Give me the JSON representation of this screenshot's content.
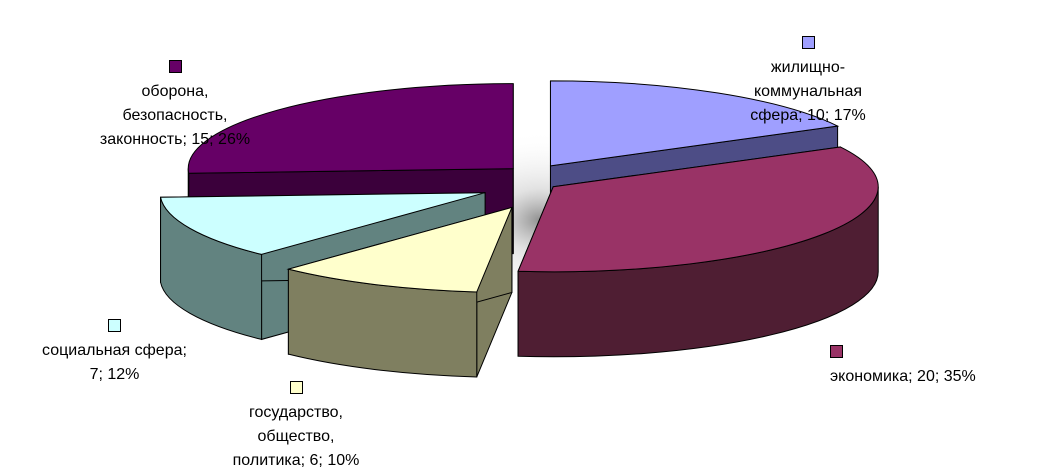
{
  "chart_data": {
    "type": "pie",
    "variant": "3d-exploded",
    "series": [
      {
        "name": "жилищно-коммунальная сфера",
        "value": 10,
        "percent": 17,
        "color": "#9F9FFF",
        "side_color": "#4D4D86"
      },
      {
        "name": "экономика",
        "value": 20,
        "percent": 35,
        "color": "#993366",
        "side_color": "#4F1E33"
      },
      {
        "name": "государство, общество, политика",
        "value": 6,
        "percent": 10,
        "color": "#FFFFCC",
        "side_color": "#7F7F60"
      },
      {
        "name": "социальная сфера",
        "value": 7,
        "percent": 12,
        "color": "#CCFFFF",
        "side_color": "#628380"
      },
      {
        "name": "оборона, безопасность, законность",
        "value": 15,
        "percent": 26,
        "color": "#660066",
        "side_color": "#3B003B"
      }
    ],
    "labels": [
      {
        "swatch_text": "",
        "text": "жилищно-\nкоммунальная\nсфера; 10; 17%"
      },
      {
        "swatch_text": "",
        "text": "экономика; 20; 35%"
      },
      {
        "swatch_text": "",
        "text": "государство,\nобщество,\nполитика; 6; 10%"
      },
      {
        "swatch_text": "",
        "text": "социальная сфера;\n7; 12%"
      },
      {
        "swatch_text": "",
        "text": "оборона,\nбезопасность,\nзаконность; 15; 26%"
      }
    ]
  }
}
